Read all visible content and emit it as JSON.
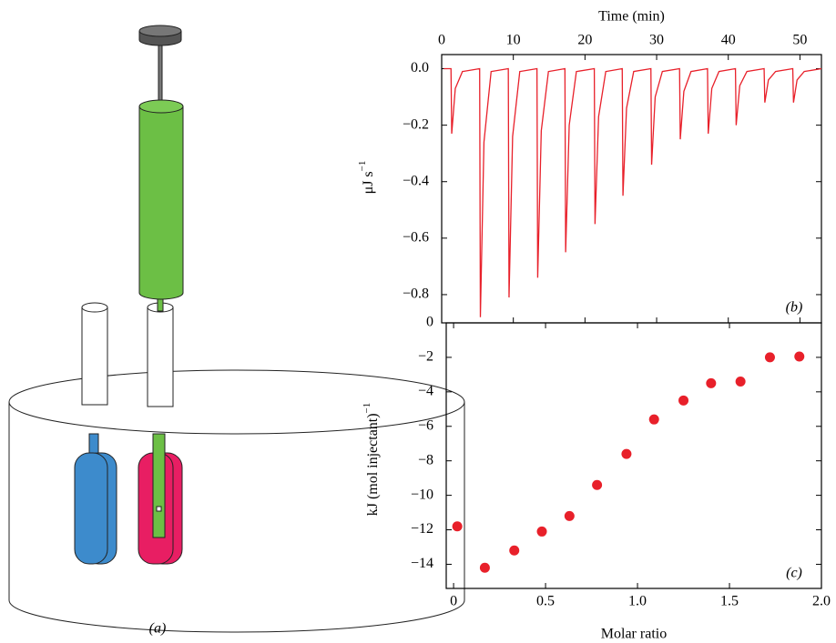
{
  "diagram": {
    "label": "(a)"
  },
  "chart_data": [
    {
      "type": "line",
      "x_label": "Time (min)",
      "y_label": "μJ s",
      "y_label_superscript": "−1",
      "panel_label": "(b)",
      "color": "#e8202a",
      "x": [
        0.3,
        1.3,
        1.4,
        1.9,
        2.9,
        5.3,
        5.4,
        5.9,
        6.9,
        9.3,
        9.4,
        9.9,
        10.9,
        13.3,
        13.4,
        13.9,
        14.9,
        17.2,
        17.3,
        17.8,
        18.8,
        21.3,
        21.4,
        21.9,
        22.9,
        25.2,
        25.3,
        25.8,
        26.8,
        29.2,
        29.3,
        29.8,
        30.8,
        33.2,
        33.3,
        33.8,
        34.8,
        37.1,
        37.2,
        37.7,
        38.7,
        41,
        41.1,
        41.6,
        42.6,
        45,
        45.1,
        45.6,
        46.6,
        49,
        49.1,
        49.6,
        50.6,
        53
      ],
      "values": [
        0,
        0,
        -0.23,
        -0.07,
        -0.01,
        0,
        -0.88,
        -0.26,
        -0.01,
        0,
        -0.81,
        -0.24,
        -0.01,
        0,
        -0.74,
        -0.22,
        -0.01,
        0,
        -0.65,
        -0.2,
        -0.01,
        0,
        -0.55,
        -0.17,
        -0.01,
        0,
        -0.45,
        -0.14,
        -0.01,
        0,
        -0.34,
        -0.1,
        -0.01,
        0,
        -0.25,
        -0.08,
        -0.01,
        0,
        -0.23,
        -0.07,
        -0.01,
        0,
        -0.2,
        -0.06,
        -0.01,
        0,
        -0.12,
        -0.04,
        -0.01,
        0,
        -0.12,
        -0.04,
        -0.01,
        0
      ],
      "xlim": [
        0,
        53
      ],
      "xticks": [
        0,
        10,
        20,
        30,
        40,
        50
      ],
      "ylim": [
        -0.9,
        0.05
      ],
      "yticks": [
        {
          "value": 0,
          "label": "0.0"
        },
        {
          "value": -0.2,
          "label": "−0.2"
        },
        {
          "value": -0.4,
          "label": "−0.4"
        },
        {
          "value": -0.6,
          "label": "−0.6"
        },
        {
          "value": -0.8,
          "label": "−0.8"
        }
      ]
    },
    {
      "type": "scatter",
      "x_label": "Molar ratio",
      "y_label": "kJ (mol injectant)",
      "y_label_superscript": "−1",
      "panel_label": "(c)",
      "color": "#e8202a",
      "x": [
        0.02,
        0.17,
        0.33,
        0.48,
        0.63,
        0.78,
        0.94,
        1.09,
        1.25,
        1.4,
        1.56,
        1.72,
        1.88
      ],
      "values": [
        -11.8,
        -14.2,
        -13.2,
        -12.1,
        -11.2,
        -9.4,
        -7.6,
        -5.6,
        -4.5,
        -3.5,
        -3.4,
        -2.0,
        -1.95
      ],
      "xlim": [
        -0.04,
        2.0
      ],
      "xticks": [
        0,
        0.5,
        {
          "value": 1,
          "label": "1.0"
        },
        1.5,
        {
          "value": 2,
          "label": "2.0"
        }
      ],
      "ylim": [
        -15.4,
        0
      ],
      "yticks": [
        {
          "value": -14,
          "label": "−14"
        },
        {
          "value": -12,
          "label": "−12"
        },
        {
          "value": -10,
          "label": "−10"
        },
        {
          "value": -8,
          "label": "−8"
        },
        {
          "value": -6,
          "label": "−6"
        },
        {
          "value": -4,
          "label": "−4"
        },
        {
          "value": -2,
          "label": "−2"
        },
        0
      ]
    }
  ]
}
